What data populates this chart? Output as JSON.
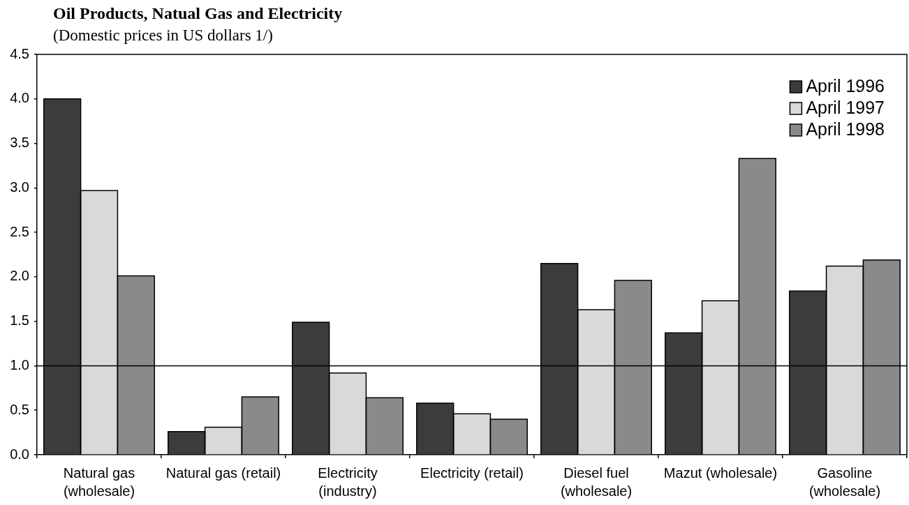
{
  "chart_data": {
    "type": "bar",
    "title": "Oil Products, Natual Gas and Electricity",
    "subtitle": "(Domestic prices in US dollars 1/)",
    "categories": [
      "Natural gas\n(wholesale)",
      "Natural gas (retail)",
      "Electricity\n(industry)",
      "Electricity (retail)",
      "Diesel fuel\n(wholesale)",
      "Mazut (wholesale)",
      "Gasoline\n(wholesale)"
    ],
    "series": [
      {
        "name": "April 1996",
        "color": "#3c3c3c",
        "values": [
          4.0,
          0.26,
          1.49,
          0.58,
          2.15,
          1.37,
          1.84
        ]
      },
      {
        "name": "April 1997",
        "color": "#d9d9d9",
        "values": [
          2.97,
          0.31,
          0.92,
          0.46,
          1.63,
          1.73,
          2.12
        ]
      },
      {
        "name": "April 1998",
        "color": "#8a8a8a",
        "values": [
          2.01,
          0.65,
          0.64,
          0.4,
          1.96,
          3.33,
          2.19
        ]
      }
    ],
    "ylim": [
      0,
      4.5
    ],
    "yticks": [
      {
        "value": 0,
        "label": "0.0"
      },
      {
        "value": 0.5,
        "label": "0.5"
      },
      {
        "value": 1,
        "label": "1.0"
      },
      {
        "value": 1.5,
        "label": "1.5"
      },
      {
        "value": 2,
        "label": "2.0"
      },
      {
        "value": 2.5,
        "label": "2.5"
      },
      {
        "value": 3,
        "label": "3.0"
      },
      {
        "value": 3.5,
        "label": "3.5"
      },
      {
        "value": 4,
        "label": "4.0"
      },
      {
        "value": 4.5,
        "label": "4.5"
      }
    ],
    "grid": false,
    "legend": "top right",
    "ref_lines": [
      {
        "axis": "y",
        "value": 1,
        "color": "#000000"
      }
    ]
  }
}
